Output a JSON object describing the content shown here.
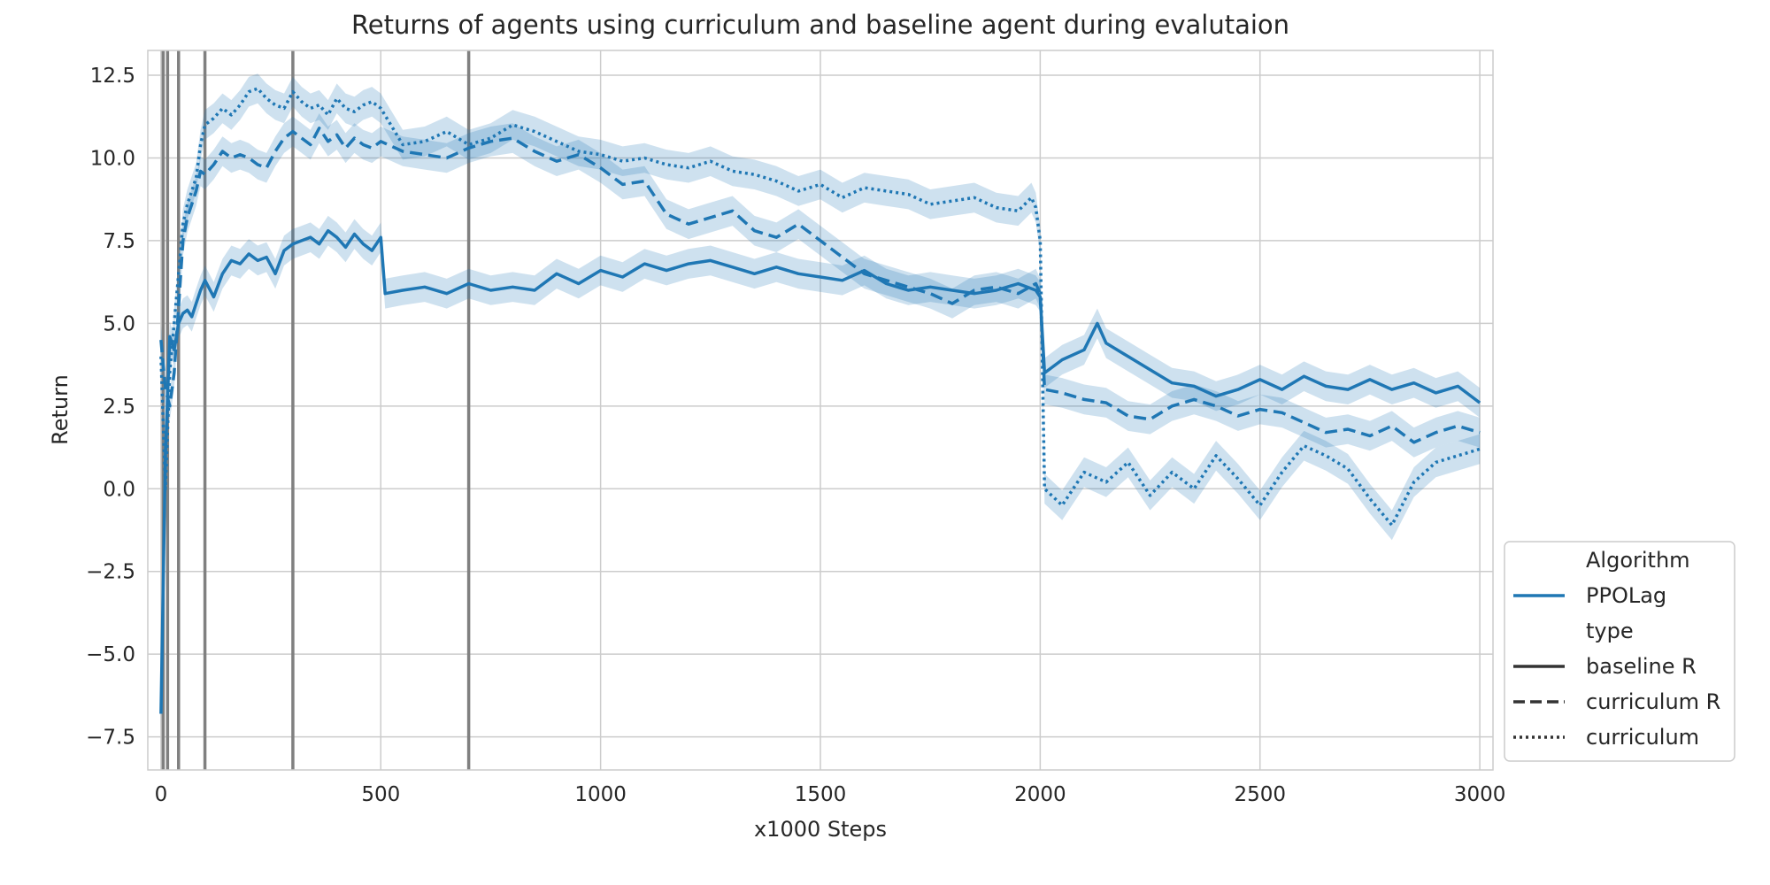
{
  "chart_data": {
    "type": "line",
    "title": "Returns of agents using curriculum and baseline agent during evalutaion",
    "xlabel": "x1000 Steps",
    "ylabel": "Return",
    "xlim": [
      -30,
      3030
    ],
    "ylim": [
      -8.5,
      13.25
    ],
    "xticks": [
      0,
      500,
      1000,
      1500,
      2000,
      2500,
      3000
    ],
    "xtick_labels": [
      "0",
      "500",
      "1000",
      "1500",
      "2000",
      "2500",
      "3000"
    ],
    "yticks": [
      -7.5,
      -5.0,
      -2.5,
      0.0,
      2.5,
      5.0,
      7.5,
      10.0,
      12.5
    ],
    "ytick_labels": [
      "−7.5",
      "−5.0",
      "−2.5",
      "0.0",
      "2.5",
      "5.0",
      "7.5",
      "10.0",
      "12.5"
    ],
    "grid": true,
    "line_color": "#1f77b4",
    "band_color": "#1f77b4",
    "vline_color": "#808080",
    "vlines": [
      5,
      15,
      40,
      100,
      300,
      700
    ],
    "legend": {
      "placement": "lower-right-outside",
      "title_algorithm": "Algorithm",
      "algorithm": "PPOLag",
      "title_type": "type",
      "types": [
        "baseline R",
        "curriculum R",
        "curriculum"
      ]
    },
    "series": [
      {
        "name": "baseline R",
        "dash": "solid",
        "x": [
          0,
          10,
          20,
          30,
          40,
          50,
          60,
          70,
          80,
          90,
          100,
          120,
          140,
          160,
          180,
          200,
          220,
          240,
          260,
          280,
          300,
          320,
          340,
          360,
          380,
          400,
          420,
          440,
          460,
          480,
          500,
          510,
          550,
          600,
          650,
          700,
          750,
          800,
          850,
          900,
          950,
          1000,
          1050,
          1100,
          1150,
          1200,
          1250,
          1300,
          1350,
          1400,
          1450,
          1500,
          1550,
          1600,
          1650,
          1700,
          1750,
          1800,
          1850,
          1900,
          1950,
          1990,
          2000,
          2010,
          2050,
          2100,
          2130,
          2150,
          2200,
          2250,
          2300,
          2350,
          2400,
          2450,
          2500,
          2550,
          2600,
          2650,
          2700,
          2750,
          2800,
          2850,
          2900,
          2950,
          3000
        ],
        "y": [
          -6.8,
          1.0,
          4.6,
          4.2,
          5.0,
          5.3,
          5.4,
          5.2,
          5.6,
          6.0,
          6.3,
          5.8,
          6.5,
          6.9,
          6.8,
          7.1,
          6.9,
          7.0,
          6.5,
          7.2,
          7.4,
          7.5,
          7.6,
          7.4,
          7.8,
          7.6,
          7.3,
          7.7,
          7.4,
          7.2,
          7.6,
          5.9,
          6.0,
          6.1,
          5.9,
          6.2,
          6.0,
          6.1,
          6.0,
          6.5,
          6.2,
          6.6,
          6.4,
          6.8,
          6.6,
          6.8,
          6.9,
          6.7,
          6.5,
          6.7,
          6.5,
          6.4,
          6.3,
          6.6,
          6.2,
          6.0,
          6.1,
          6.0,
          5.9,
          6.0,
          6.2,
          6.0,
          5.8,
          3.5,
          3.9,
          4.2,
          5.0,
          4.4,
          4.0,
          3.6,
          3.2,
          3.1,
          2.8,
          3.0,
          3.3,
          3.0,
          3.4,
          3.1,
          3.0,
          3.3,
          3.0,
          3.2,
          2.9,
          3.1,
          2.6
        ]
      },
      {
        "name": "curriculum R",
        "dash": "dashed",
        "x": [
          0,
          10,
          20,
          30,
          40,
          50,
          60,
          70,
          80,
          90,
          100,
          120,
          140,
          160,
          180,
          200,
          220,
          240,
          260,
          280,
          300,
          320,
          340,
          360,
          380,
          400,
          420,
          440,
          460,
          480,
          500,
          550,
          600,
          650,
          700,
          750,
          800,
          850,
          900,
          950,
          1000,
          1050,
          1100,
          1150,
          1200,
          1250,
          1300,
          1350,
          1400,
          1450,
          1500,
          1550,
          1600,
          1650,
          1700,
          1750,
          1800,
          1850,
          1900,
          1950,
          1990,
          2000,
          2010,
          2050,
          2100,
          2150,
          2200,
          2250,
          2300,
          2350,
          2400,
          2450,
          2500,
          2550,
          2600,
          2650,
          2700,
          2750,
          2800,
          2850,
          2900,
          2950,
          3000
        ],
        "y": [
          4.5,
          3.0,
          2.5,
          3.5,
          5.5,
          7.5,
          8.2,
          8.6,
          9.0,
          9.6,
          9.5,
          9.8,
          10.2,
          10.0,
          10.1,
          10.0,
          9.8,
          9.7,
          10.2,
          10.6,
          10.8,
          10.6,
          10.4,
          10.9,
          10.5,
          10.7,
          10.3,
          10.6,
          10.4,
          10.3,
          10.5,
          10.2,
          10.1,
          10.0,
          10.3,
          10.5,
          10.6,
          10.2,
          9.9,
          10.1,
          9.7,
          9.2,
          9.3,
          8.3,
          8.0,
          8.2,
          8.4,
          7.8,
          7.6,
          8.0,
          7.5,
          7.0,
          6.5,
          6.3,
          6.1,
          5.9,
          5.6,
          6.0,
          6.1,
          5.9,
          6.2,
          5.9,
          3.0,
          2.9,
          2.7,
          2.6,
          2.2,
          2.1,
          2.5,
          2.7,
          2.5,
          2.2,
          2.4,
          2.3,
          2.0,
          1.7,
          1.8,
          1.6,
          1.9,
          1.4,
          1.7,
          1.9,
          1.7
        ]
      },
      {
        "name": "curriculum",
        "dash": "dotted",
        "x": [
          0,
          10,
          20,
          30,
          40,
          50,
          60,
          70,
          80,
          90,
          100,
          120,
          140,
          160,
          180,
          200,
          220,
          240,
          260,
          280,
          300,
          320,
          340,
          360,
          380,
          400,
          420,
          440,
          460,
          480,
          500,
          550,
          600,
          650,
          700,
          750,
          800,
          850,
          900,
          950,
          1000,
          1050,
          1100,
          1150,
          1200,
          1250,
          1300,
          1350,
          1400,
          1450,
          1500,
          1550,
          1600,
          1650,
          1700,
          1750,
          1800,
          1850,
          1900,
          1950,
          1980,
          1990,
          2000,
          2010,
          2050,
          2100,
          2150,
          2200,
          2250,
          2300,
          2350,
          2400,
          2450,
          2500,
          2550,
          2600,
          2650,
          2700,
          2750,
          2800,
          2850,
          2900,
          2950,
          3000
        ],
        "y": [
          4.0,
          0.0,
          3.5,
          5.0,
          6.5,
          8.0,
          8.6,
          9.0,
          9.4,
          10.4,
          11.0,
          11.2,
          11.5,
          11.3,
          11.6,
          12.0,
          12.1,
          11.8,
          11.6,
          11.5,
          12.0,
          11.7,
          11.5,
          11.6,
          11.3,
          11.8,
          11.5,
          11.4,
          11.6,
          11.7,
          11.5,
          10.4,
          10.5,
          10.8,
          10.4,
          10.6,
          11.0,
          10.8,
          10.5,
          10.2,
          10.1,
          9.9,
          10.0,
          9.8,
          9.7,
          9.9,
          9.6,
          9.5,
          9.3,
          9.0,
          9.2,
          8.8,
          9.1,
          9.0,
          8.9,
          8.6,
          8.7,
          8.8,
          8.5,
          8.4,
          8.8,
          8.5,
          7.5,
          0.0,
          -0.5,
          0.5,
          0.2,
          0.8,
          -0.2,
          0.5,
          0.0,
          1.0,
          0.3,
          -0.5,
          0.5,
          1.3,
          1.0,
          0.6,
          -0.3,
          -1.1,
          0.2,
          0.8,
          1.0,
          1.2
        ]
      }
    ]
  }
}
